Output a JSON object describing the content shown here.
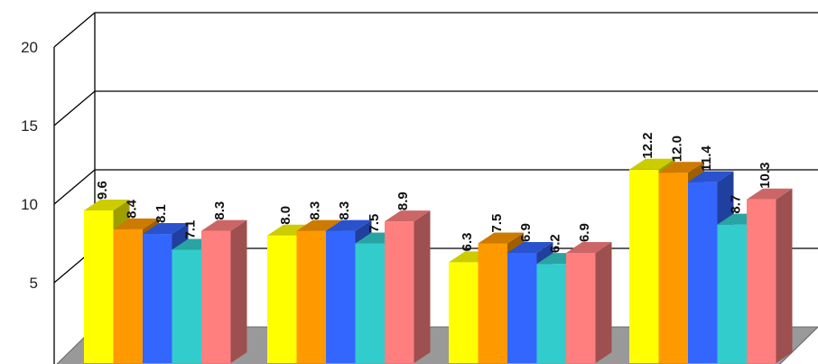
{
  "chart_data": {
    "type": "bar",
    "title": "",
    "xlabel": "",
    "ylabel": "",
    "ylim": [
      0,
      20
    ],
    "yticks": [
      5,
      10,
      15,
      20
    ],
    "grid": true,
    "style": "3d-clustered-column",
    "colors": [
      "#ffff00",
      "#ff9900",
      "#3366ff",
      "#33cccc",
      "#ff7f7f"
    ],
    "categories": [
      "",
      "",
      "",
      ""
    ],
    "series": [
      {
        "values": [
          9.6,
          8.0,
          6.3,
          12.2
        ]
      },
      {
        "values": [
          8.4,
          8.3,
          7.5,
          12.0
        ]
      },
      {
        "values": [
          8.1,
          8.3,
          6.9,
          11.4
        ]
      },
      {
        "values": [
          7.1,
          7.5,
          6.2,
          8.7
        ]
      },
      {
        "values": [
          8.3,
          8.9,
          6.9,
          10.3
        ]
      }
    ],
    "labels": [
      [
        "9.6",
        "8.0",
        "6.3",
        "12.2"
      ],
      [
        "8.4",
        "8.3",
        "7.5",
        "12.0"
      ],
      [
        "8.1",
        "8.3",
        "6.9",
        "11.4"
      ],
      [
        "7.1",
        "7.5",
        "6.2",
        "8.7"
      ],
      [
        "8.3",
        "8.9",
        "6.9",
        "10.3"
      ]
    ]
  }
}
